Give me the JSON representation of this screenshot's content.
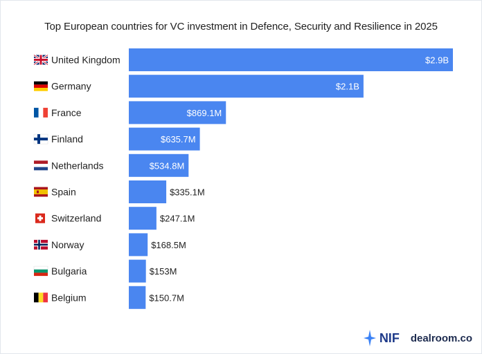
{
  "title": "Top European countries for VC investment in Defence, Security and Resilience in 2025",
  "chart_data": {
    "type": "bar",
    "orientation": "horizontal",
    "categories": [
      "United Kingdom",
      "Germany",
      "France",
      "Finland",
      "Netherlands",
      "Spain",
      "Switzerland",
      "Norway",
      "Bulgaria",
      "Belgium"
    ],
    "values": [
      2900,
      2100,
      869.1,
      635.7,
      534.8,
      335.1,
      247.1,
      168.5,
      153,
      150.7
    ],
    "value_labels": [
      "$2.9B",
      "$2.1B",
      "$869.1M",
      "$635.7M",
      "$534.8M",
      "$335.1M",
      "$247.1M",
      "$168.5M",
      "$153M",
      "$150.7M"
    ],
    "xlim": [
      0,
      2900
    ],
    "bar_color": "#4a86f0",
    "grid": false,
    "legend": "none"
  },
  "flags": [
    "uk-flag-icon",
    "germany-flag-icon",
    "france-flag-icon",
    "finland-flag-icon",
    "netherlands-flag-icon",
    "spain-flag-icon",
    "switzerland-flag-icon",
    "norway-flag-icon",
    "bulgaria-flag-icon",
    "belgium-flag-icon"
  ],
  "footer": {
    "nif_label": "NIF",
    "dealroom_label": "dealroom.co"
  }
}
